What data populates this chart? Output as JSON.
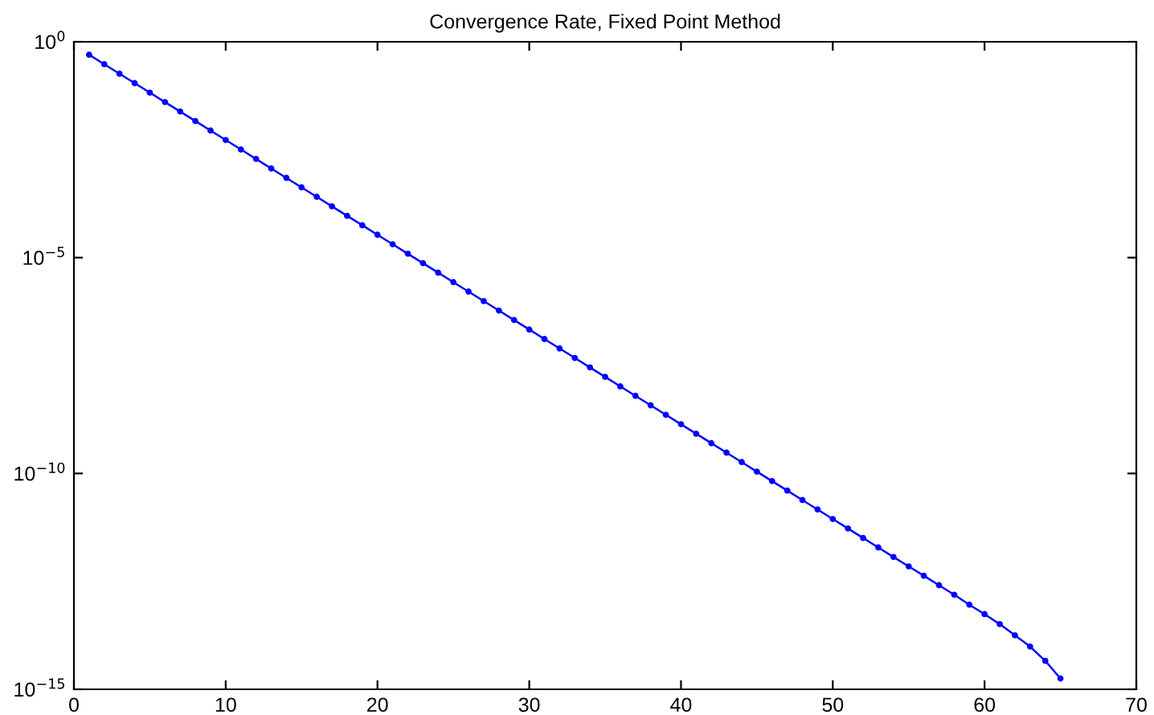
{
  "chart_data": {
    "type": "line",
    "title": "Convergence Rate, Fixed Point Method",
    "x": [
      1,
      2,
      3,
      4,
      5,
      6,
      7,
      8,
      9,
      10,
      11,
      12,
      13,
      14,
      15,
      16,
      17,
      18,
      19,
      20,
      21,
      22,
      23,
      24,
      25,
      26,
      27,
      28,
      29,
      30,
      31,
      32,
      33,
      34,
      35,
      36,
      37,
      38,
      39,
      40,
      41,
      42,
      43,
      44,
      45,
      46,
      47,
      48,
      49,
      50,
      51,
      52,
      53,
      54,
      55,
      56,
      57,
      58,
      59,
      60,
      61,
      62,
      63,
      64,
      65
    ],
    "series": [
      {
        "color": "#0000ff",
        "values": [
          0.5,
          0.302,
          0.182,
          0.11,
          0.0664,
          0.04,
          0.0242,
          0.0146,
          0.00879,
          0.0053,
          0.0032,
          0.00193,
          0.00116,
          0.000702,
          0.000424,
          0.000256,
          0.000154,
          9.3e-05,
          5.61e-05,
          3.38e-05,
          2.04e-05,
          1.23e-05,
          7.43e-06,
          4.48e-06,
          2.7e-06,
          1.63e-06,
          9.84e-07,
          5.94e-07,
          3.58e-07,
          2.16e-07,
          1.3e-07,
          7.86e-08,
          4.74e-08,
          2.86e-08,
          1.73e-08,
          1.04e-08,
          6.28e-09,
          3.79e-09,
          2.29e-09,
          1.38e-09,
          8.32e-10,
          5.02e-10,
          3.03e-10,
          1.83e-10,
          1.1e-10,
          6.65e-11,
          4.01e-11,
          2.42e-11,
          1.46e-11,
          8.8e-12,
          5.31e-12,
          3.2e-12,
          1.93e-12,
          1.16e-12,
          7.03e-13,
          4.27e-13,
          2.57e-13,
          1.55e-13,
          9.12e-14,
          5.5e-14,
          3.24e-14,
          1.78e-14,
          9.77e-15,
          4.57e-15,
          1.78e-15
        ]
      }
    ],
    "log": "y",
    "xlim": [
      0,
      70
    ],
    "xticks": [
      0,
      10,
      20,
      30,
      40,
      50,
      60,
      70
    ],
    "ylim": [
      1e-15,
      1
    ],
    "yticks": [
      {
        "value": 1,
        "label": "10$^{0}$"
      },
      {
        "value": 1e-05,
        "label": "10$^{−5}$"
      },
      {
        "value": 1e-10,
        "label": "10$^{−10}$"
      },
      {
        "value": 1e-15,
        "label": "10$^{−15}$"
      }
    ],
    "grid": false,
    "marker": "circle",
    "line_style": "solid"
  }
}
